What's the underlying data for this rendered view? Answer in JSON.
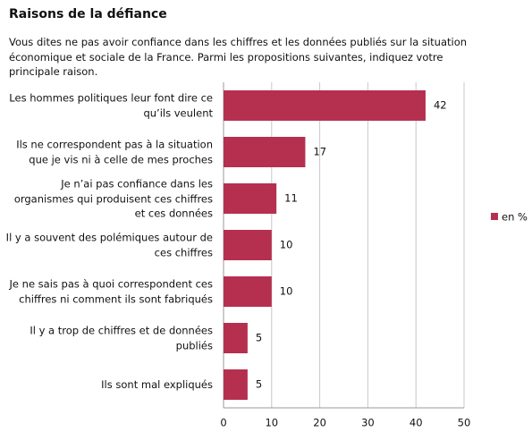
{
  "chart_data": {
    "type": "barh",
    "title": "Raisons de la défiance",
    "subtitle": "Vous dites ne pas avoir confiance dans les chiffres et les données publiés sur la situation économique et sociale de la France. Parmi les propositions suivantes, indiquez votre principale raison.",
    "categories": [
      "Les hommes politiques leur font dire ce qu’ils veulent",
      "Ils ne correspondent pas à la situation que je vis ni à celle de mes proches",
      "Je n’ai pas confiance dans les organismes qui produisent ces chiffres et ces données",
      "Il y a souvent des polémiques autour de ces chiffres",
      "Je ne sais pas à quoi correspondent ces chiffres ni comment ils sont fabriqués",
      "Il y a trop de chiffres et de données publiés",
      "Ils sont mal expliqués"
    ],
    "series": [
      {
        "name": "en %",
        "color": "#b5304f",
        "values": [
          42,
          17,
          11,
          10,
          10,
          5,
          5
        ]
      }
    ],
    "xlim": [
      0,
      50
    ],
    "xticks": [
      0,
      10,
      20,
      30,
      40,
      50
    ],
    "grid": true,
    "legend": "right"
  }
}
